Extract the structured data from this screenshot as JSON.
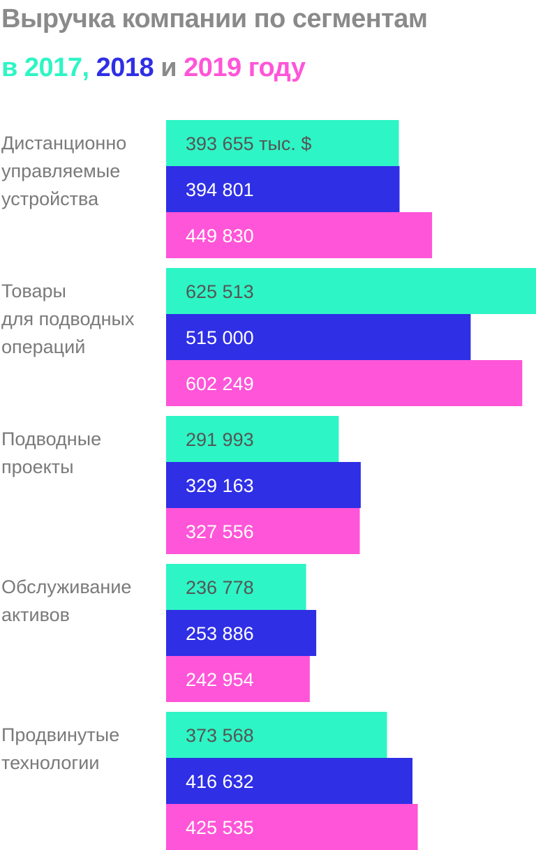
{
  "header": {
    "title": "Выручка компании по сегментам",
    "subtitle_prefix": "в ",
    "year_2017": "2017",
    "sep1": ", ",
    "year_2018": "2018",
    "sep2": " и ",
    "year_2019": "2019",
    "subtitle_suffix": " году"
  },
  "colors": {
    "2017": "#2ef5c5",
    "2018": "#2f2fe6",
    "2019": "#ff55d8",
    "label_text": "#7a7a7a"
  },
  "chart_data": {
    "type": "bar",
    "orientation": "horizontal",
    "unit": "тыс. $",
    "categories": [
      [
        "Дистанционно",
        "управляемые",
        "устройства"
      ],
      [
        "Товары",
        "для подводных",
        "операций"
      ],
      [
        "Подводные",
        "проекты"
      ],
      [
        "Обслуживание",
        "активов"
      ],
      [
        "Продвинутые",
        "технологии"
      ]
    ],
    "series": [
      {
        "name": "2017",
        "values": [
          393655,
          625513,
          291993,
          236778,
          373568
        ]
      },
      {
        "name": "2018",
        "values": [
          394801,
          515000,
          329163,
          253886,
          416632
        ]
      },
      {
        "name": "2019",
        "values": [
          449830,
          602249,
          327556,
          242954,
          425535
        ]
      }
    ],
    "value_labels": [
      [
        "393 655 тыс. $",
        "394 801",
        "449 830"
      ],
      [
        "625 513",
        "515 000",
        "602 249"
      ],
      [
        "291 993",
        "329 163",
        "327 556"
      ],
      [
        "236 778",
        "253 886",
        "242 954"
      ],
      [
        "373 568",
        "416 632",
        "425 535"
      ]
    ],
    "xlim": [
      0,
      625513
    ],
    "grid": false,
    "legend": "title"
  }
}
